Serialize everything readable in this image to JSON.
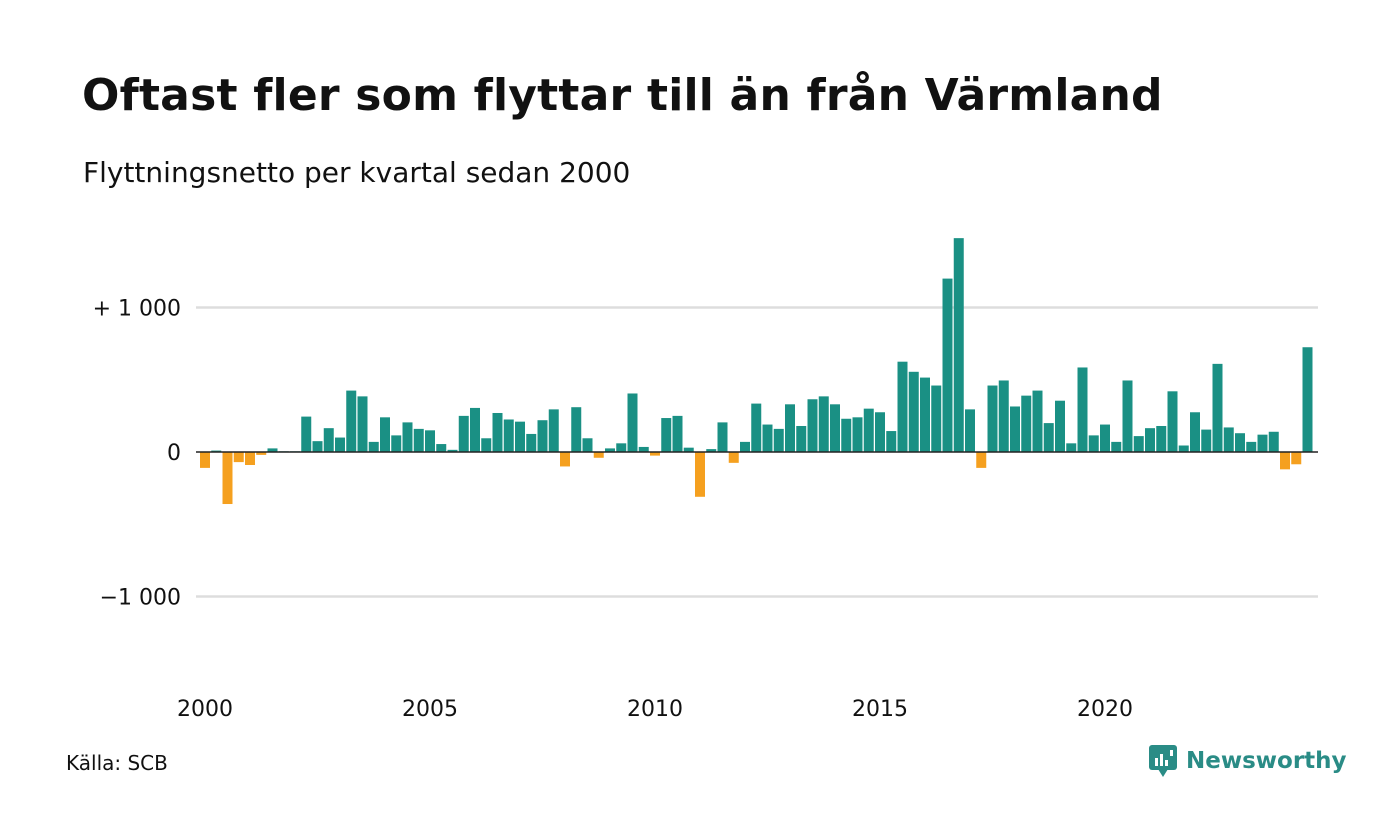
{
  "title": "Oftast fler som flyttar till än från Värmland",
  "subtitle": "Flyttningsnetto per kvartal sedan 2000",
  "source": "Källa: SCB",
  "brand": {
    "name": "Newsworthy",
    "icon": "newsworthy-logo-icon"
  },
  "colors": {
    "positive": "#1a9084",
    "negative": "#f5a01f",
    "grid": "#dddddd",
    "zero_line": "#222222"
  },
  "chart_data": {
    "type": "bar",
    "x_start": "2000 Q1",
    "x_unit": "quarter",
    "x_tick_labels": [
      "2000",
      "2005",
      "2010",
      "2015",
      "2020"
    ],
    "y_tick_labels": [
      "+ 1 000",
      "0",
      "−1 000"
    ],
    "y_ticks": [
      1000,
      0,
      -1000
    ],
    "ylim": [
      -1400,
      1500
    ],
    "grid": true,
    "values": [
      -110,
      10,
      -360,
      -70,
      -90,
      -20,
      25,
      5,
      5,
      245,
      75,
      165,
      100,
      425,
      385,
      70,
      240,
      115,
      205,
      160,
      150,
      55,
      15,
      250,
      305,
      95,
      270,
      225,
      210,
      125,
      220,
      295,
      -100,
      310,
      95,
      -40,
      25,
      60,
      405,
      35,
      -25,
      235,
      250,
      30,
      -310,
      20,
      205,
      -75,
      70,
      335,
      190,
      160,
      330,
      180,
      365,
      385,
      330,
      230,
      240,
      300,
      275,
      145,
      625,
      555,
      515,
      460,
      1200,
      1480,
      295,
      -110,
      460,
      495,
      315,
      390,
      425,
      200,
      355,
      60,
      585,
      115,
      190,
      70,
      495,
      110,
      165,
      180,
      420,
      45,
      275,
      155,
      610,
      170,
      130,
      70,
      120,
      140,
      -120,
      -85,
      725
    ]
  }
}
